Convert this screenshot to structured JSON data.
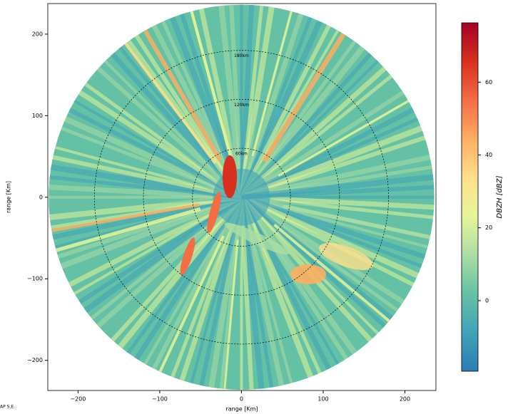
{
  "chart_data": {
    "type": "ppi",
    "xlabel": "range [Km]",
    "ylabel": "range [Km]",
    "xlim": [
      -237,
      238
    ],
    "ylim": [
      -237,
      237.5
    ],
    "xticks": [
      {
        "value": -200,
        "label": "−200"
      },
      {
        "value": -100,
        "label": "−100"
      },
      0,
      100,
      200
    ],
    "yticks": [
      {
        "value": -200,
        "label": "−200"
      },
      {
        "value": -100,
        "label": "−100"
      },
      0,
      100,
      200
    ],
    "max_range": 236,
    "range_rings": [
      {
        "value": 60,
        "label": "60km"
      },
      {
        "value": 120,
        "label": "120km"
      },
      {
        "value": 180,
        "label": "180km"
      }
    ],
    "colorbar_label": "DBZH [dBZ]",
    "clim": [
      -19.4,
      76.3
    ],
    "cticks": [
      0,
      20,
      40,
      60
    ],
    "colormap": [
      "#2c7bb6",
      "#3fa3b8",
      "#64c1a5",
      "#abdda4",
      "#e6f598",
      "#fee08b",
      "#fdae61",
      "#f46d43",
      "#d7301f",
      "#a50026"
    ],
    "footer": "AP S.E."
  }
}
